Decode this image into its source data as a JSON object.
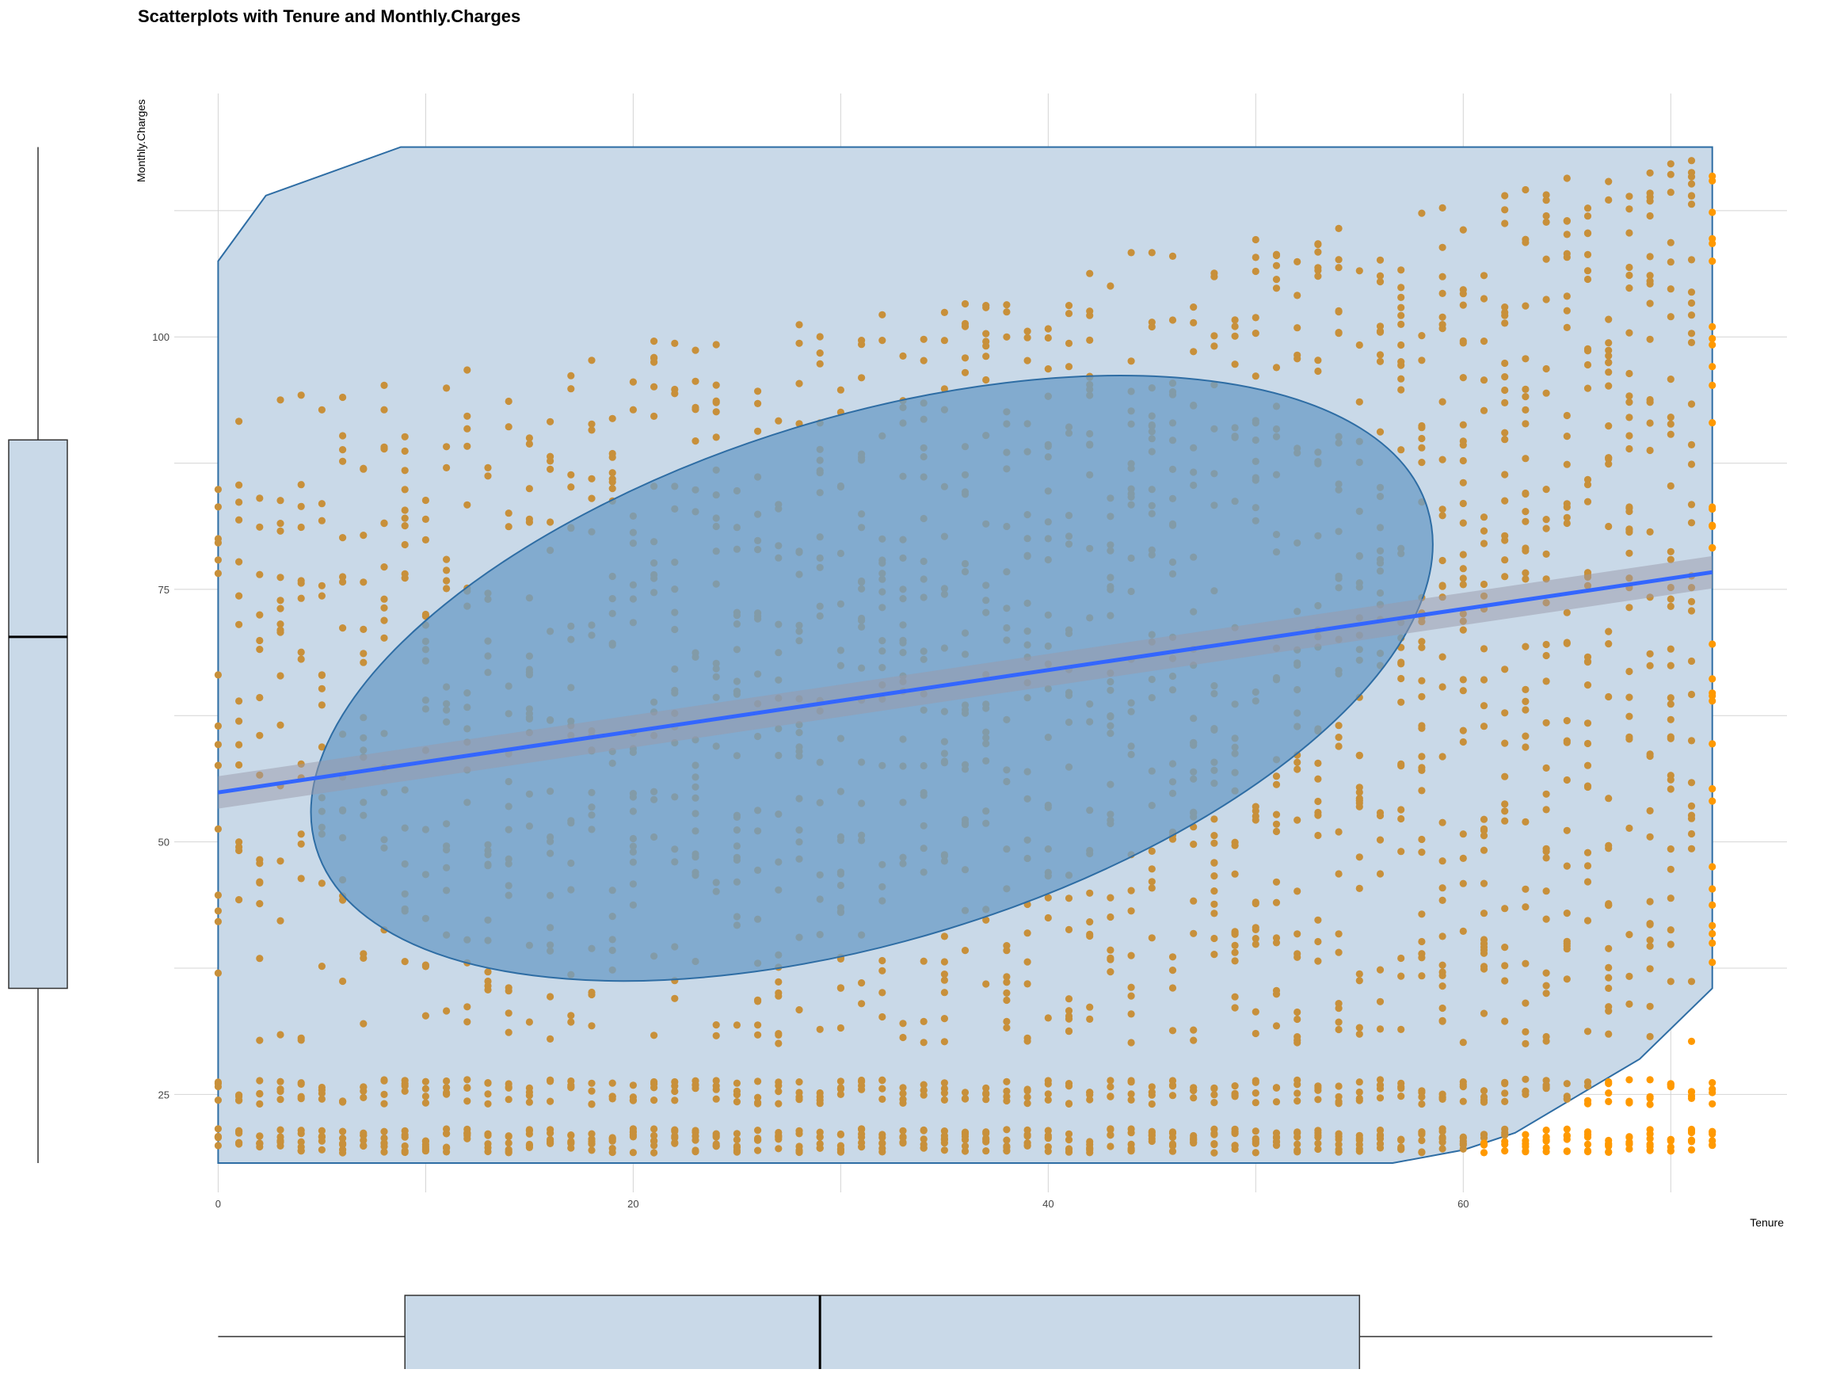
{
  "chart_data": {
    "type": "scatter",
    "title": "Scatterplots with Tenure and Monthly.Charges",
    "xlabel": "Tenure",
    "ylabel": "Monthly.Charges",
    "xlim": [
      -4.1,
      75.6
    ],
    "ylim": [
      15.3,
      124.1
    ],
    "x_ticks": [
      0,
      20,
      40,
      60
    ],
    "y_ticks": [
      25,
      50,
      75,
      100
    ],
    "grid": true,
    "legend": "none",
    "point_color": "#C8903A",
    "outside_point_color": "#FF9900",
    "regression_line": {
      "color": "#3366FF",
      "ci_color": "#9999AA",
      "points": [
        [
          0,
          54.9
        ],
        [
          72,
          76.7
        ]
      ]
    },
    "convex_hull": {
      "fill": "#C9D9E8",
      "stroke": "#2E6DA4",
      "points": [
        [
          0,
          18.2
        ],
        [
          56.6,
          18.2
        ],
        [
          60,
          19.5
        ],
        [
          62.5,
          21.2
        ],
        [
          68.5,
          28.5
        ],
        [
          72,
          35.5
        ],
        [
          72,
          118.8
        ],
        [
          8.8,
          118.8
        ],
        [
          2.3,
          114
        ],
        [
          0,
          107.5
        ]
      ]
    },
    "ellipse": {
      "fill": "#6E9DC8",
      "stroke": "#2E6DA4",
      "center": [
        31.5,
        66.2
      ],
      "note_bounds_x": [
        3.5,
        58.4
      ],
      "note_bounds_y": [
        32.8,
        99.3
      ]
    },
    "marginal_boxplot_y": {
      "min": 18.2,
      "q1": 35.5,
      "median": 70.3,
      "q3": 89.8,
      "max": 118.8
    },
    "marginal_boxplot_x": {
      "min": 0,
      "q1": 9,
      "median": 29,
      "q3": 55,
      "max": 72
    }
  }
}
